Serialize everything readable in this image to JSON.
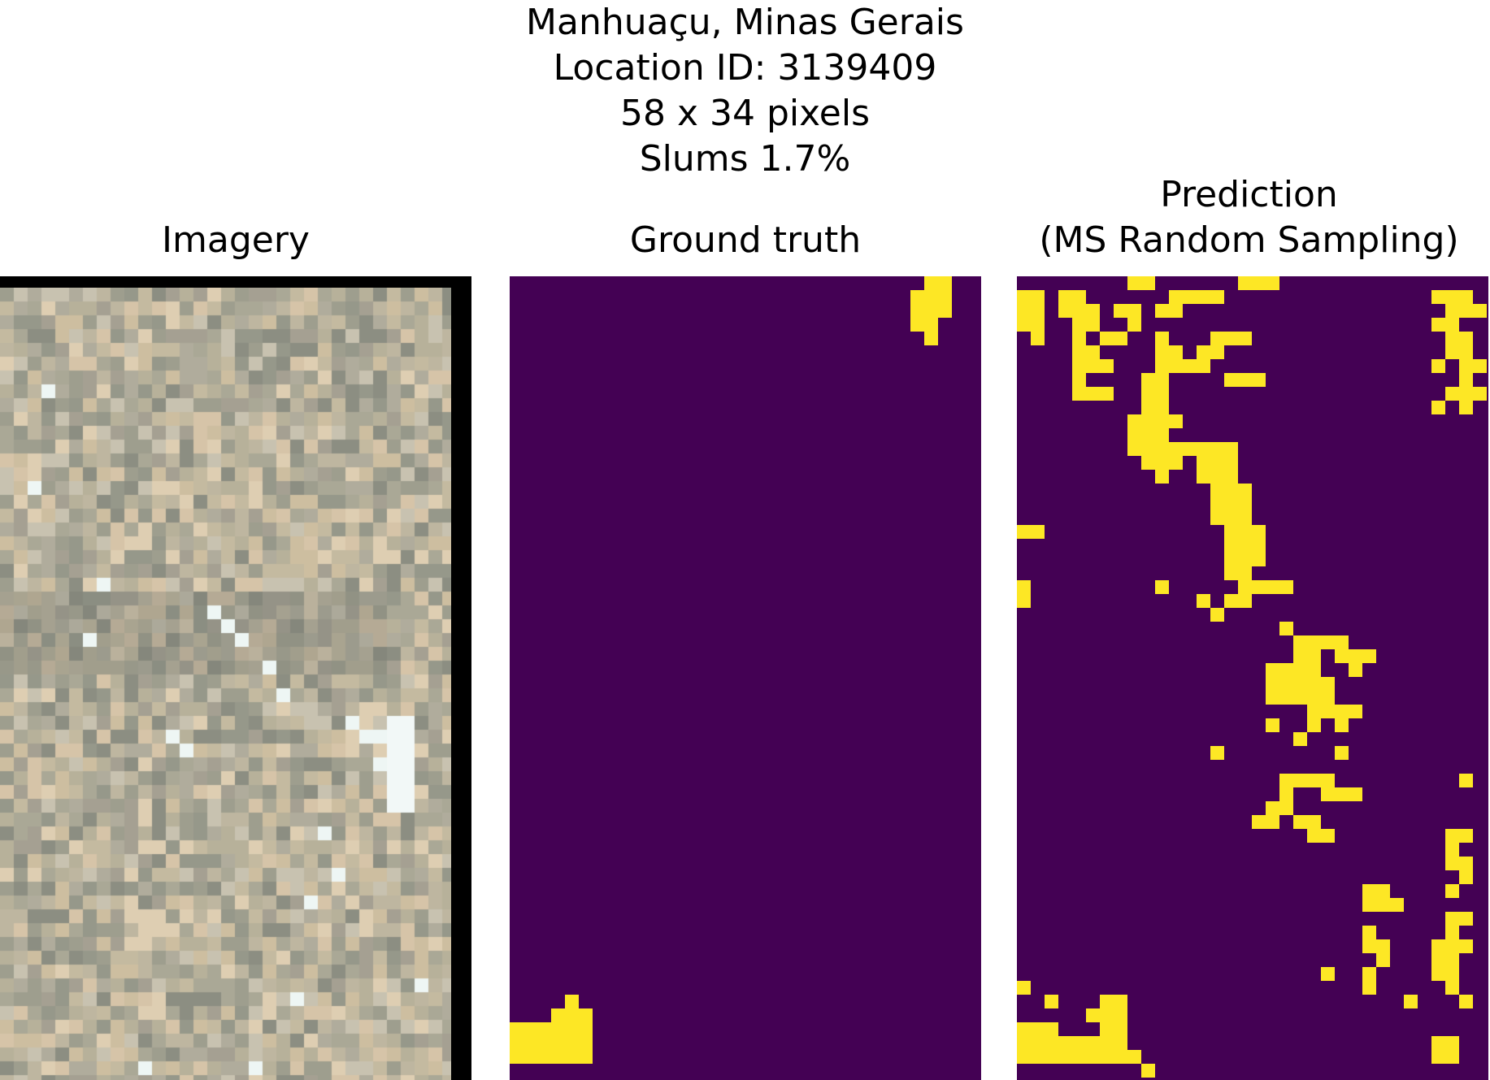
{
  "title": {
    "line1": "Manhuaçu, Minas Gerais",
    "line2": "Location ID: 3139409",
    "line3": "58 x 34 pixels",
    "line4": "Slums 1.7%"
  },
  "panels": {
    "imagery": {
      "title": "Imagery"
    },
    "ground_truth": {
      "title": "Ground truth"
    },
    "prediction": {
      "title_line1": "Prediction",
      "title_line2": "(MS Random Sampling)"
    }
  },
  "colors": {
    "background_class": "#440154",
    "slum_class": "#fde725",
    "frame": "#000000"
  },
  "grid": {
    "cols": 34,
    "rows": 58
  }
}
